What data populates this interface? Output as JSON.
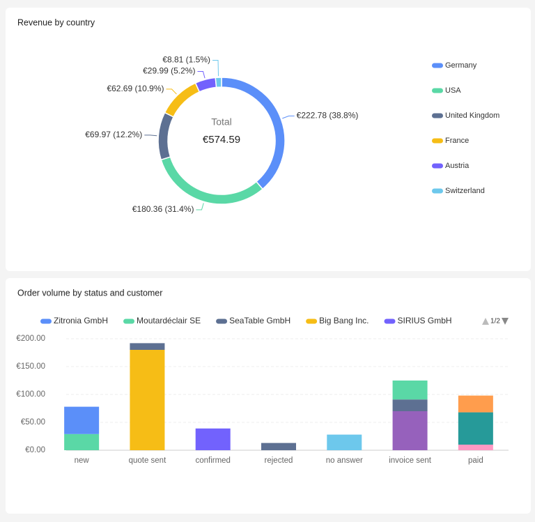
{
  "chart_data": [
    {
      "type": "donut",
      "title": "Revenue by country",
      "center_label": "Total",
      "center_value": "€574.59",
      "categories": [
        "Germany",
        "USA",
        "United Kingdom",
        "France",
        "Austria",
        "Switzerland"
      ],
      "values": [
        222.78,
        180.36,
        69.97,
        62.69,
        29.99,
        8.81
      ],
      "value_labels": [
        "€222.78 (38.8%)",
        "€180.36 (31.4%)",
        "€69.97 (12.2%)",
        "€62.69 (10.9%)",
        "€29.99 (5.2%)",
        "€8.81 (1.5%)"
      ],
      "colors": [
        "#5b8ff9",
        "#5ad8a6",
        "#5d7092",
        "#f6bd16",
        "#7262fd",
        "#6dc8ec"
      ],
      "legend": "right"
    },
    {
      "type": "stacked_bar",
      "title": "Order volume by status and customer",
      "categories": [
        "new",
        "quote sent",
        "confirmed",
        "rejected",
        "no answer",
        "invoice sent",
        "paid"
      ],
      "series": [
        {
          "name": "Zitronia GmbH",
          "color": "#5b8ff9",
          "values": [
            49,
            null,
            null,
            null,
            null,
            null,
            null
          ]
        },
        {
          "name": "Moutardéclair SE",
          "color": "#5ad8a6",
          "values": [
            29,
            null,
            null,
            null,
            null,
            34,
            null
          ]
        },
        {
          "name": "SeaTable GmbH",
          "color": "#5d7092",
          "values": [
            null,
            12,
            null,
            13,
            null,
            21,
            null
          ]
        },
        {
          "name": "Big Bang Inc.",
          "color": "#f6bd16",
          "values": [
            null,
            180,
            null,
            null,
            null,
            null,
            null
          ]
        },
        {
          "name": "SIRIUS GmbH",
          "color": "#7262fd",
          "values": [
            null,
            null,
            39,
            null,
            null,
            null,
            null
          ]
        },
        {
          "name": null,
          "color": "#6dc8ec",
          "values": [
            null,
            null,
            null,
            null,
            28,
            null,
            null
          ]
        },
        {
          "name": null,
          "color": "#9661bc",
          "values": [
            null,
            null,
            null,
            null,
            null,
            70,
            null
          ]
        },
        {
          "name": null,
          "color": "#ff9d4d",
          "values": [
            null,
            null,
            null,
            null,
            null,
            null,
            30
          ]
        },
        {
          "name": null,
          "color": "#269a99",
          "values": [
            null,
            null,
            null,
            null,
            null,
            null,
            58
          ]
        },
        {
          "name": null,
          "color": "#ff99c3",
          "values": [
            null,
            null,
            null,
            null,
            null,
            null,
            10
          ]
        }
      ],
      "legend_page": "1/2",
      "ylim": [
        0,
        200
      ],
      "yticks": [
        {
          "value": 0,
          "label": "€0.00"
        },
        {
          "value": 50,
          "label": "€50.00"
        },
        {
          "value": 100,
          "label": "€100.00"
        },
        {
          "value": 150,
          "label": "€150.00"
        },
        {
          "value": 200,
          "label": "€200.00"
        }
      ],
      "grid": true
    }
  ]
}
